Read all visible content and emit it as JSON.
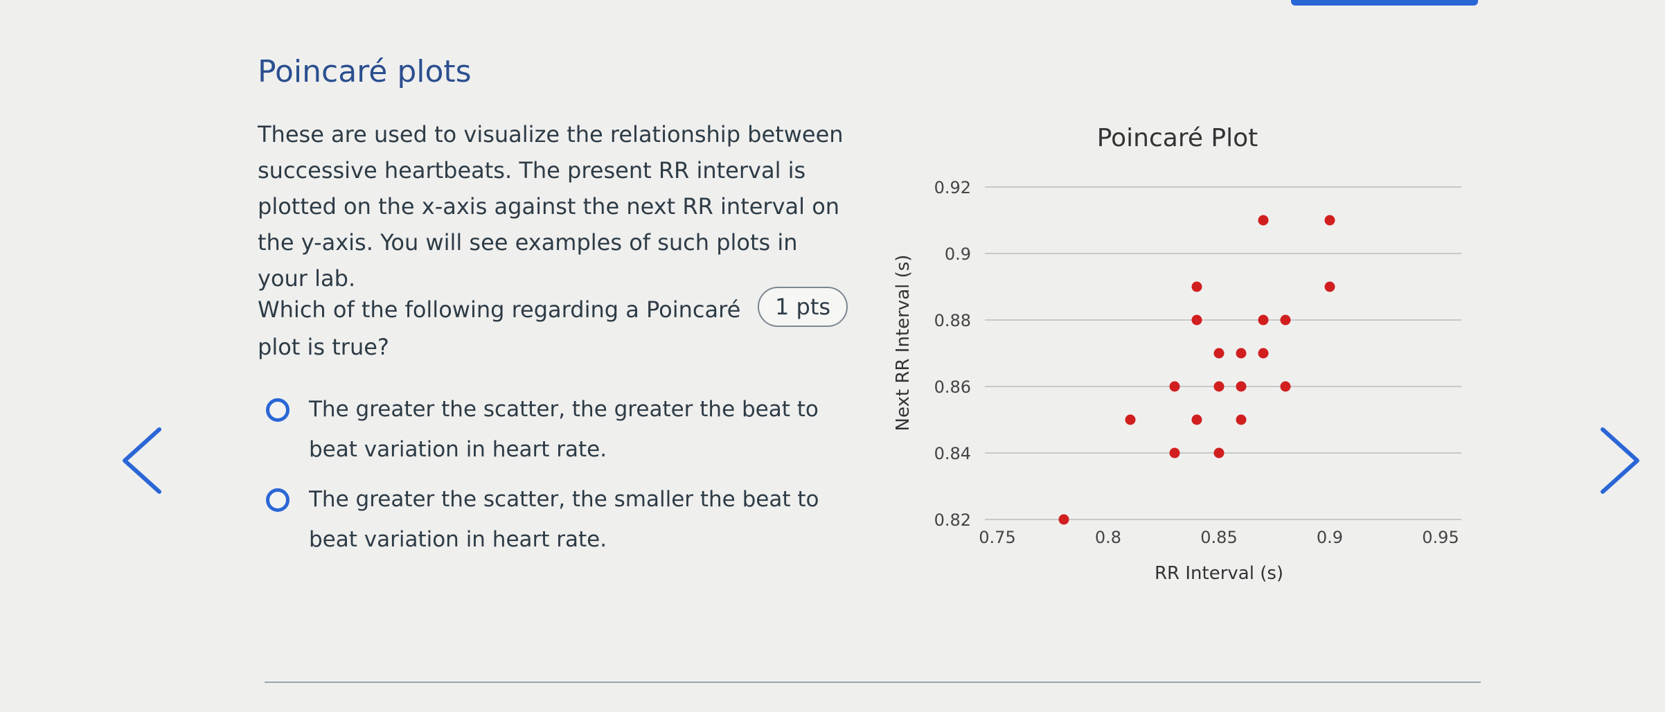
{
  "section": {
    "title": "Poincaré plots",
    "intro": "These are used to visualize the relationship between successive heartbeats. The present RR interval is plotted on the x-axis against the next RR interval on the y-axis. You will see examples of such plots in your lab."
  },
  "question": {
    "text": "Which of the following regarding a Poincaré plot is true?",
    "points": "1 pts",
    "options": [
      {
        "text": "The greater the scatter, the greater the beat to beat variation in heart rate.",
        "selected": false
      },
      {
        "text": "The greater the scatter, the smaller the beat to beat variation in heart rate.",
        "selected": false
      }
    ]
  },
  "colors": {
    "accent": "#2a66d6",
    "title": "#2b4f8f",
    "point": "#d11f1f",
    "text": "#2d3b45"
  },
  "icons": {
    "prev": "chevron-left-icon",
    "next": "chevron-right-icon"
  },
  "chart_data": {
    "type": "scatter",
    "title": "Poincaré Plot",
    "xlabel": "RR Interval (s)",
    "ylabel": "Next RR Interval (s)",
    "xlim": [
      0.75,
      0.95
    ],
    "ylim": [
      0.82,
      0.92
    ],
    "xticks": [
      "0.75",
      "0.8",
      "0.85",
      "0.9",
      "0.95"
    ],
    "yticks": [
      "0.82",
      "0.84",
      "0.86",
      "0.88",
      "0.9",
      "0.92"
    ],
    "grid": "horizontal",
    "points": [
      {
        "x": 0.78,
        "y": 0.82
      },
      {
        "x": 0.81,
        "y": 0.85
      },
      {
        "x": 0.83,
        "y": 0.84
      },
      {
        "x": 0.83,
        "y": 0.86
      },
      {
        "x": 0.84,
        "y": 0.85
      },
      {
        "x": 0.84,
        "y": 0.88
      },
      {
        "x": 0.84,
        "y": 0.89
      },
      {
        "x": 0.85,
        "y": 0.84
      },
      {
        "x": 0.85,
        "y": 0.86
      },
      {
        "x": 0.85,
        "y": 0.87
      },
      {
        "x": 0.86,
        "y": 0.85
      },
      {
        "x": 0.86,
        "y": 0.86
      },
      {
        "x": 0.86,
        "y": 0.87
      },
      {
        "x": 0.87,
        "y": 0.87
      },
      {
        "x": 0.87,
        "y": 0.88
      },
      {
        "x": 0.87,
        "y": 0.91
      },
      {
        "x": 0.88,
        "y": 0.86
      },
      {
        "x": 0.88,
        "y": 0.88
      },
      {
        "x": 0.9,
        "y": 0.89
      },
      {
        "x": 0.9,
        "y": 0.91
      }
    ]
  }
}
